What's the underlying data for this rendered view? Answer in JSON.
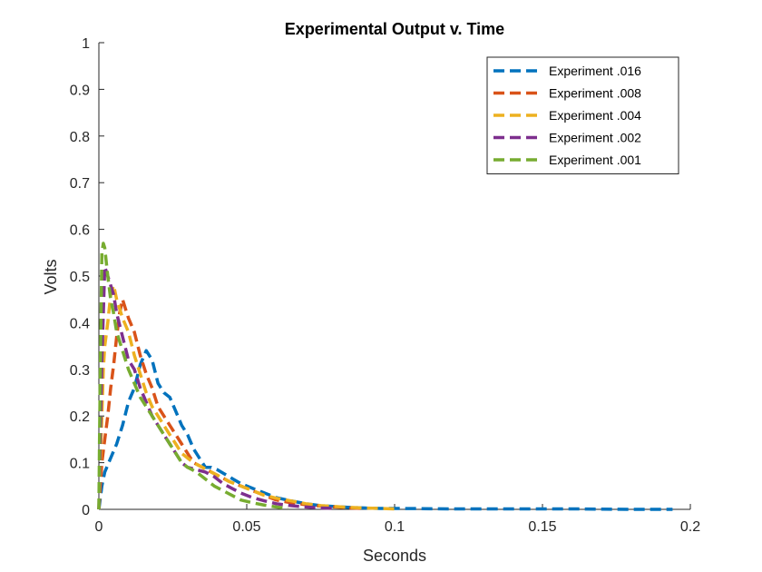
{
  "chart_data": {
    "type": "line",
    "title": "Experimental Output v. Time",
    "xlabel": "Seconds",
    "ylabel": "Volts",
    "xlim": [
      0,
      0.2
    ],
    "ylim": [
      0,
      1
    ],
    "xticks": [
      {
        "value": 0,
        "label": "0"
      },
      {
        "value": 0.05,
        "label": "0.05"
      },
      {
        "value": 0.1,
        "label": "0.1"
      },
      {
        "value": 0.15,
        "label": "0.15"
      },
      {
        "value": 0.2,
        "label": "0.2"
      }
    ],
    "yticks": [
      {
        "value": 0,
        "label": "0"
      },
      {
        "value": 0.1,
        "label": "0.1"
      },
      {
        "value": 0.2,
        "label": "0.2"
      },
      {
        "value": 0.3,
        "label": "0.3"
      },
      {
        "value": 0.4,
        "label": "0.4"
      },
      {
        "value": 0.5,
        "label": "0.5"
      },
      {
        "value": 0.6,
        "label": "0.6"
      },
      {
        "value": 0.7,
        "label": "0.7"
      },
      {
        "value": 0.8,
        "label": "0.8"
      },
      {
        "value": 0.9,
        "label": "0.9"
      },
      {
        "value": 1,
        "label": "1"
      }
    ],
    "grid": false,
    "legend_position": "top-right",
    "series": [
      {
        "name": "Experiment .016",
        "color": "#0072BD",
        "x": [
          0,
          0.001,
          0.002,
          0.004,
          0.006,
          0.008,
          0.01,
          0.012,
          0.014,
          0.016,
          0.018,
          0.02,
          0.022,
          0.024,
          0.026,
          0.028,
          0.03,
          0.032,
          0.034,
          0.036,
          0.038,
          0.04,
          0.044,
          0.048,
          0.052,
          0.056,
          0.06,
          0.065,
          0.07,
          0.075,
          0.08,
          0.085,
          0.09,
          0.095,
          0.1,
          0.12,
          0.14,
          0.16,
          0.18,
          0.194
        ],
        "y": [
          0.0,
          0.05,
          0.08,
          0.11,
          0.14,
          0.18,
          0.23,
          0.26,
          0.31,
          0.34,
          0.32,
          0.27,
          0.25,
          0.24,
          0.21,
          0.18,
          0.16,
          0.13,
          0.11,
          0.09,
          0.09,
          0.085,
          0.07,
          0.055,
          0.045,
          0.035,
          0.025,
          0.018,
          0.012,
          0.008,
          0.006,
          0.004,
          0.003,
          0.002,
          0.002,
          0.001,
          0.001,
          0.001,
          0.0,
          0.0
        ]
      },
      {
        "name": "Experiment .008",
        "color": "#D95319",
        "x": [
          0,
          0.0005,
          0.001,
          0.002,
          0.003,
          0.004,
          0.005,
          0.006,
          0.007,
          0.008,
          0.009,
          0.01,
          0.012,
          0.014,
          0.016,
          0.018,
          0.02,
          0.022,
          0.024,
          0.026,
          0.028,
          0.03,
          0.032,
          0.035,
          0.038,
          0.041,
          0.044,
          0.048,
          0.052,
          0.056,
          0.06,
          0.065,
          0.07,
          0.075,
          0.08,
          0.085,
          0.09
        ],
        "y": [
          0.0,
          0.05,
          0.1,
          0.15,
          0.2,
          0.26,
          0.31,
          0.37,
          0.42,
          0.45,
          0.43,
          0.41,
          0.38,
          0.33,
          0.29,
          0.26,
          0.22,
          0.2,
          0.18,
          0.16,
          0.14,
          0.12,
          0.1,
          0.09,
          0.08,
          0.07,
          0.06,
          0.05,
          0.04,
          0.03,
          0.02,
          0.014,
          0.01,
          0.007,
          0.005,
          0.003,
          0.002
        ]
      },
      {
        "name": "Experiment .004",
        "color": "#EDB120",
        "x": [
          0,
          0.0005,
          0.001,
          0.0015,
          0.002,
          0.003,
          0.004,
          0.005,
          0.006,
          0.008,
          0.01,
          0.012,
          0.014,
          0.016,
          0.018,
          0.02,
          0.022,
          0.024,
          0.026,
          0.028,
          0.03,
          0.032,
          0.035,
          0.038,
          0.041,
          0.044,
          0.048,
          0.052,
          0.056,
          0.06,
          0.065,
          0.07,
          0.075,
          0.08,
          0.085,
          0.09,
          0.095,
          0.1
        ],
        "y": [
          0.0,
          0.1,
          0.2,
          0.3,
          0.35,
          0.4,
          0.46,
          0.48,
          0.45,
          0.41,
          0.38,
          0.33,
          0.29,
          0.25,
          0.22,
          0.2,
          0.18,
          0.16,
          0.14,
          0.12,
          0.11,
          0.1,
          0.09,
          0.08,
          0.07,
          0.06,
          0.05,
          0.04,
          0.03,
          0.024,
          0.018,
          0.012,
          0.008,
          0.006,
          0.004,
          0.003,
          0.002,
          0.001
        ]
      },
      {
        "name": "Experiment .002",
        "color": "#7E2F8E",
        "x": [
          0,
          0.0003,
          0.0006,
          0.001,
          0.0015,
          0.002,
          0.003,
          0.004,
          0.005,
          0.006,
          0.008,
          0.01,
          0.012,
          0.014,
          0.016,
          0.018,
          0.02,
          0.022,
          0.024,
          0.026,
          0.028,
          0.03,
          0.033,
          0.036,
          0.039,
          0.042,
          0.045,
          0.048,
          0.052,
          0.056,
          0.06,
          0.065,
          0.07,
          0.075,
          0.08
        ],
        "y": [
          0.0,
          0.1,
          0.2,
          0.32,
          0.42,
          0.52,
          0.5,
          0.48,
          0.46,
          0.42,
          0.37,
          0.32,
          0.3,
          0.26,
          0.23,
          0.2,
          0.18,
          0.16,
          0.14,
          0.12,
          0.1,
          0.09,
          0.085,
          0.08,
          0.07,
          0.055,
          0.045,
          0.035,
          0.025,
          0.018,
          0.012,
          0.008,
          0.005,
          0.003,
          0.002
        ]
      },
      {
        "name": "Experiment .001",
        "color": "#77AC30",
        "x": [
          0,
          0.0002,
          0.0005,
          0.0008,
          0.001,
          0.0015,
          0.002,
          0.003,
          0.004,
          0.005,
          0.006,
          0.008,
          0.01,
          0.012,
          0.014,
          0.016,
          0.018,
          0.02,
          0.022,
          0.024,
          0.026,
          0.028,
          0.03,
          0.033,
          0.036,
          0.039,
          0.042,
          0.045,
          0.048,
          0.052,
          0.056,
          0.06,
          0.064
        ],
        "y": [
          0.0,
          0.15,
          0.3,
          0.45,
          0.55,
          0.57,
          0.56,
          0.5,
          0.45,
          0.42,
          0.38,
          0.34,
          0.3,
          0.27,
          0.24,
          0.22,
          0.2,
          0.18,
          0.16,
          0.14,
          0.12,
          0.1,
          0.09,
          0.08,
          0.065,
          0.05,
          0.04,
          0.03,
          0.02,
          0.014,
          0.009,
          0.005,
          0.002
        ]
      }
    ]
  }
}
